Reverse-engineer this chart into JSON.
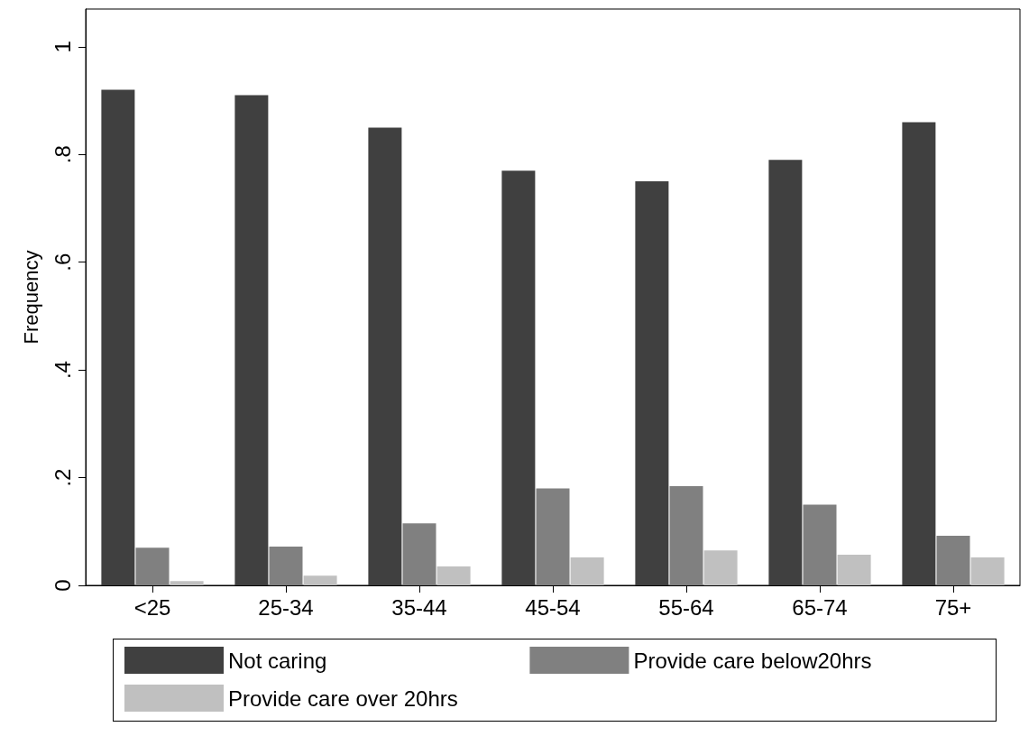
{
  "chart_data": {
    "type": "bar",
    "ylabel": "Frequency",
    "categories": [
      "<25",
      "25-34",
      "35-44",
      "45-54",
      "55-64",
      "65-74",
      "75+"
    ],
    "series": [
      {
        "name": "Not caring",
        "color": "#404040",
        "values": [
          0.92,
          0.91,
          0.85,
          0.77,
          0.75,
          0.79,
          0.86
        ]
      },
      {
        "name": "Provide care below20hrs",
        "color": "#808080",
        "values": [
          0.07,
          0.072,
          0.115,
          0.18,
          0.184,
          0.15,
          0.092
        ]
      },
      {
        "name": "Provide care over 20hrs",
        "color": "#c0c0c0",
        "values": [
          0.008,
          0.018,
          0.035,
          0.052,
          0.065,
          0.057,
          0.052
        ]
      }
    ],
    "ylim": [
      0,
      1.07
    ],
    "yticks": [
      {
        "value": 0,
        "label": "0"
      },
      {
        "value": 0.2,
        "label": ".2"
      },
      {
        "value": 0.4,
        "label": ".4"
      },
      {
        "value": 0.6,
        "label": ".6"
      },
      {
        "value": 0.8,
        "label": ".8"
      },
      {
        "value": 1,
        "label": "1"
      }
    ],
    "grid": false,
    "legend": "bottom"
  }
}
